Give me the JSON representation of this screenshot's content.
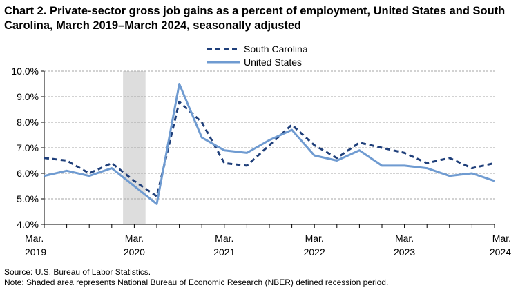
{
  "chart_data": {
    "type": "line",
    "title": "Chart 2. Private-sector gross job gains as a percent of employment, United States and South Carolina, March 2019–March 2024, seasonally adjusted",
    "xlabel": "",
    "ylabel": "",
    "x": [
      "Mar 2019",
      "Jun 2019",
      "Sep 2019",
      "Dec 2019",
      "Mar 2020",
      "Jun 2020",
      "Sep 2020",
      "Dec 2020",
      "Mar 2021",
      "Jun 2021",
      "Sep 2021",
      "Dec 2021",
      "Mar 2022",
      "Jun 2022",
      "Sep 2022",
      "Dec 2022",
      "Mar 2023",
      "Jun 2023",
      "Sep 2023",
      "Dec 2023",
      "Mar 2024"
    ],
    "x_tick_labels": [
      {
        "index": 0,
        "line1": "Mar.",
        "line2": "2019"
      },
      {
        "index": 4,
        "line1": "Mar.",
        "line2": "2020"
      },
      {
        "index": 8,
        "line1": "Mar.",
        "line2": "2021"
      },
      {
        "index": 12,
        "line1": "Mar.",
        "line2": "2022"
      },
      {
        "index": 16,
        "line1": "Mar.",
        "line2": "2023"
      },
      {
        "index": 20,
        "line1": "Mar.",
        "line2": "2024"
      }
    ],
    "y_ticks": [
      "4.0%",
      "5.0%",
      "6.0%",
      "7.0%",
      "8.0%",
      "9.0%",
      "10.0%"
    ],
    "ylim": [
      4.0,
      10.0
    ],
    "grid": "horizontal dashed",
    "legend_position": "top-center",
    "recession_shading": {
      "from_index": 3.5,
      "to_index": 4.5,
      "color": "#dddddd"
    },
    "series": [
      {
        "name": "South Carolina",
        "style": "dashed",
        "color": "#1f3f7a",
        "values": [
          6.6,
          6.5,
          6.0,
          6.4,
          5.7,
          5.1,
          8.8,
          8.0,
          6.4,
          6.3,
          7.1,
          7.9,
          7.1,
          6.6,
          7.2,
          7.0,
          6.8,
          6.4,
          6.6,
          6.2,
          6.4
        ]
      },
      {
        "name": "United States",
        "style": "solid",
        "color": "#6f9bd1",
        "values": [
          5.9,
          6.1,
          5.9,
          6.2,
          5.5,
          4.8,
          9.5,
          7.4,
          6.9,
          6.8,
          7.3,
          7.7,
          6.7,
          6.5,
          6.9,
          6.3,
          6.3,
          6.2,
          5.9,
          6.0,
          5.7
        ]
      }
    ]
  },
  "footer": {
    "source": "Source: U.S. Bureau of Labor Statistics.",
    "note": "Note: Shaded area represents National Bureau of Economic Research (NBER) defined recession period."
  }
}
